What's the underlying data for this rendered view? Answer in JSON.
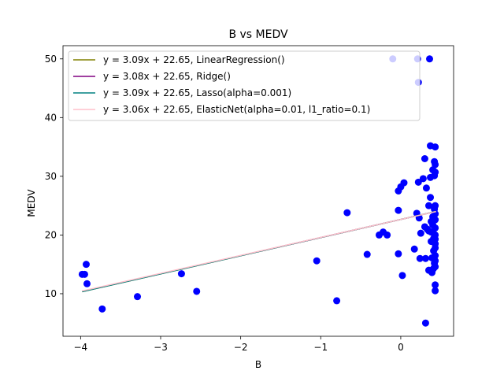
{
  "chart_data": {
    "type": "scatter",
    "title": "B vs MEDV",
    "xlabel": "B",
    "ylabel": "MEDV",
    "xlim": [
      -4.22,
      0.66
    ],
    "ylim": [
      2.75,
      52.25
    ],
    "xticks": [
      -4,
      -3,
      -2,
      -1,
      0
    ],
    "xtick_labels": [
      "−4",
      "−3",
      "−2",
      "−1",
      "0"
    ],
    "yticks": [
      10,
      20,
      30,
      40,
      50
    ],
    "ytick_labels": [
      "10",
      "20",
      "30",
      "40",
      "50"
    ],
    "grid": false,
    "legend_position": "top-left",
    "scatter_color": "#0000ff",
    "points": [
      [
        -3.95,
        13.3
      ],
      [
        -3.98,
        13.3
      ],
      [
        -3.93,
        15.0
      ],
      [
        -3.92,
        11.7
      ],
      [
        -3.73,
        7.4
      ],
      [
        -3.29,
        9.5
      ],
      [
        -2.74,
        13.4
      ],
      [
        -2.55,
        10.4
      ],
      [
        -1.05,
        15.6
      ],
      [
        -0.8,
        8.8
      ],
      [
        -0.67,
        23.8
      ],
      [
        -0.42,
        16.7
      ],
      [
        -0.27,
        20.0
      ],
      [
        -0.22,
        20.5
      ],
      [
        -0.17,
        20.0
      ],
      [
        -0.1,
        50.0
      ],
      [
        -0.03,
        24.2
      ],
      [
        -0.03,
        27.5
      ],
      [
        -0.03,
        16.8
      ],
      [
        0.0,
        28.2
      ],
      [
        0.02,
        13.1
      ],
      [
        0.04,
        28.9
      ],
      [
        0.17,
        17.6
      ],
      [
        0.2,
        23.7
      ],
      [
        0.21,
        50.0
      ],
      [
        0.22,
        46.0
      ],
      [
        0.22,
        29.0
      ],
      [
        0.23,
        22.9
      ],
      [
        0.24,
        16.0
      ],
      [
        0.25,
        20.3
      ],
      [
        0.28,
        29.6
      ],
      [
        0.3,
        33.0
      ],
      [
        0.3,
        21.4
      ],
      [
        0.31,
        16.0
      ],
      [
        0.31,
        5.0
      ],
      [
        0.32,
        28.0
      ],
      [
        0.33,
        21.0
      ],
      [
        0.35,
        25.0
      ],
      [
        0.35,
        20.7
      ],
      [
        0.35,
        14.0
      ],
      [
        0.36,
        50.0
      ],
      [
        0.37,
        35.2
      ],
      [
        0.37,
        29.8
      ],
      [
        0.37,
        26.4
      ],
      [
        0.38,
        22.3
      ],
      [
        0.38,
        20.5
      ],
      [
        0.38,
        18.9
      ],
      [
        0.39,
        16.1
      ],
      [
        0.39,
        13.6
      ],
      [
        0.4,
        31.1
      ],
      [
        0.4,
        23.1
      ],
      [
        0.4,
        21.7
      ],
      [
        0.41,
        19.4
      ],
      [
        0.41,
        17.3
      ],
      [
        0.41,
        14.3
      ],
      [
        0.42,
        32.5
      ],
      [
        0.42,
        30.1
      ],
      [
        0.42,
        24.4
      ],
      [
        0.42,
        20.1
      ],
      [
        0.42,
        15.2
      ],
      [
        0.43,
        35.0
      ],
      [
        0.43,
        32.0
      ],
      [
        0.43,
        30.7
      ],
      [
        0.43,
        25.0
      ],
      [
        0.43,
        23.6
      ],
      [
        0.43,
        22.6
      ],
      [
        0.43,
        21.2
      ],
      [
        0.43,
        20.0
      ],
      [
        0.43,
        19.3
      ],
      [
        0.43,
        18.5
      ],
      [
        0.43,
        17.8
      ],
      [
        0.43,
        16.5
      ],
      [
        0.43,
        15.6
      ],
      [
        0.43,
        14.6
      ],
      [
        0.43,
        11.5
      ],
      [
        0.43,
        10.5
      ]
    ],
    "series": [
      {
        "name": "y = 3.09x + 22.65, LinearRegression()",
        "slope": 3.09,
        "intercept": 22.65,
        "color": "#808000",
        "x_range": [
          -3.98,
          0.44
        ]
      },
      {
        "name": "y = 3.08x + 22.65, Ridge()",
        "slope": 3.08,
        "intercept": 22.65,
        "color": "#800080",
        "x_range": [
          -3.98,
          0.44
        ]
      },
      {
        "name": "y = 3.09x + 22.65, Lasso(alpha=0.001)",
        "slope": 3.09,
        "intercept": 22.65,
        "color": "#008080",
        "x_range": [
          -3.98,
          0.44
        ]
      },
      {
        "name": "y = 3.06x + 22.65, ElasticNet(alpha=0.01, l1_ratio=0.1)",
        "slope": 3.06,
        "intercept": 22.65,
        "color": "#ffc0cb",
        "x_range": [
          -3.98,
          0.44
        ]
      }
    ]
  }
}
